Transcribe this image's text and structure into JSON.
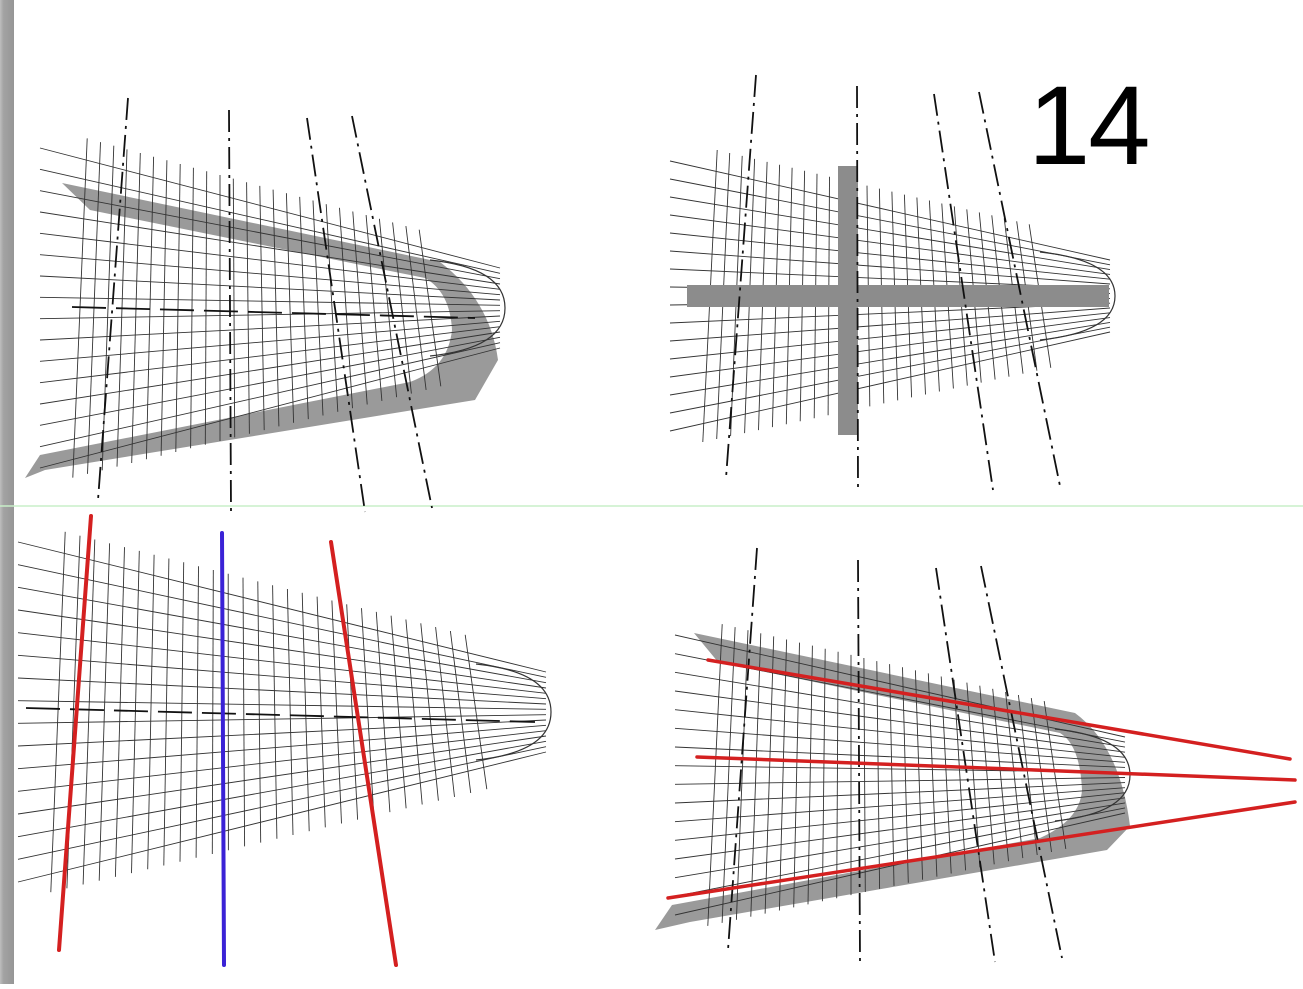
{
  "slide": {
    "number": "14"
  },
  "panels": [
    {
      "id": "top-left",
      "overlay": "gray-band-outline"
    },
    {
      "id": "top-right",
      "overlay": "gray-cross"
    },
    {
      "id": "bottom-left",
      "overlay": "red-blue-verticals"
    },
    {
      "id": "bottom-right",
      "overlay": "red-converging-lines"
    }
  ],
  "colors": {
    "grid": "#333333",
    "band": "#9a9a9a",
    "red": "#d42020",
    "blue": "#3a22d6",
    "divider": "#c8efc8",
    "edge_strip": "#8a8a8a"
  }
}
